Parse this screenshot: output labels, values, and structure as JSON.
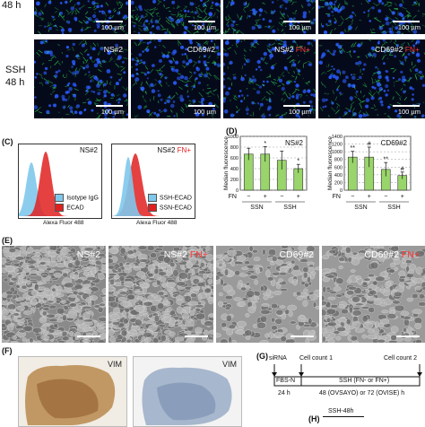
{
  "top_rows": {
    "row1": {
      "label": "48 h",
      "scale": "100 µm"
    },
    "row2": {
      "label_a": "SSH",
      "label_b": "48 h",
      "tiles": [
        {
          "name": "NS#2",
          "fn": ""
        },
        {
          "name": "CD69#2",
          "fn": ""
        },
        {
          "name": "NS#2",
          "fn": "FN+"
        },
        {
          "name": "CD69#2",
          "fn": "FN+"
        }
      ],
      "scale": "100 µm"
    }
  },
  "panel_c": {
    "letter": "(C)",
    "plots": [
      {
        "name": "NS#2",
        "fn": "",
        "xlabel": "Alexa Fluor 488",
        "legend": [
          {
            "label": "Isotype IgG",
            "color": "#7fc8ec"
          },
          {
            "label": "ECAD",
            "color": "#e02020"
          }
        ]
      },
      {
        "name": "NS#2",
        "fn": "FN+",
        "xlabel": "Alexa Fluor 488",
        "legend": [
          {
            "label": "SSH-ECAD",
            "color": "#7fc8ec"
          },
          {
            "label": "SSN-ECAD",
            "color": "#e02020"
          }
        ]
      }
    ]
  },
  "panel_d": {
    "letter": "(D)",
    "ylabel": "Median fluorescence",
    "fn_label": "FN",
    "signs": [
      "−",
      "+",
      "−",
      "+"
    ],
    "groups": [
      "SSN",
      "SSH"
    ],
    "chart_data": [
      {
        "type": "bar",
        "title": "NS#2",
        "ylim": [
          0,
          1000
        ],
        "yticks": [
          0,
          200,
          400,
          600,
          800,
          1000
        ],
        "values": [
          670,
          670,
          555,
          400
        ],
        "errors": [
          110,
          140,
          170,
          80
        ],
        "annotations": [
          "",
          "*",
          "",
          "*"
        ]
      },
      {
        "type": "bar",
        "title": "CD69#2",
        "ylim": [
          0,
          1400
        ],
        "yticks": [
          0,
          200,
          400,
          600,
          800,
          1000,
          1200,
          1400
        ],
        "values": [
          860,
          860,
          540,
          380
        ],
        "errors": [
          150,
          260,
          180,
          90
        ],
        "annotations": [
          "**",
          "#",
          "**",
          "#"
        ]
      }
    ],
    "bar_color": "#99d56a"
  },
  "panel_e": {
    "letter": "(E)",
    "tiles": [
      {
        "name": "NS#2",
        "fn": ""
      },
      {
        "name": "NS#2",
        "fn": "FN+"
      },
      {
        "name": "CD69#2",
        "fn": ""
      },
      {
        "name": "CD69#2",
        "fn": "FN+"
      }
    ]
  },
  "panel_f": {
    "letter": "(F)",
    "tiles": [
      "VIM",
      "VIM"
    ]
  },
  "panel_g": {
    "letter": "(G)",
    "sirna": "siRNA",
    "count1": "Cell count 1",
    "count2": "Cell count 2",
    "fbs": "FBS-N",
    "ssh": "SSH (FN- or FN+)",
    "t24": "24 h",
    "t48": "48 (OVSAYO) or 72 (OVISE) h"
  },
  "panel_h": {
    "letter": "(H)",
    "label": "SSH-48h"
  }
}
